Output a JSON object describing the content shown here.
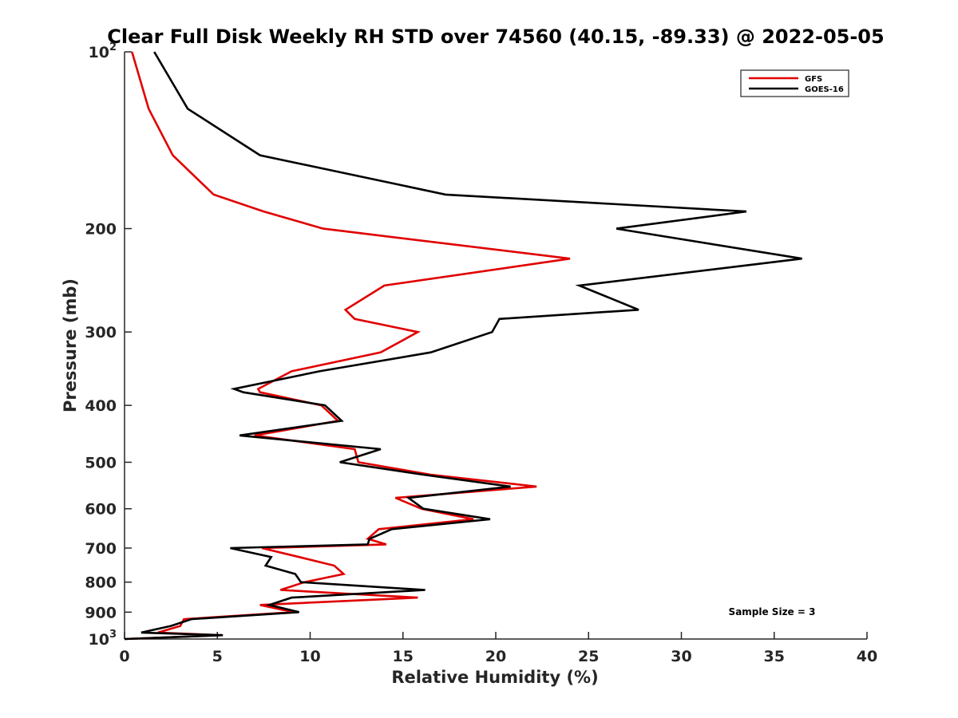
{
  "chart_data": {
    "type": "line",
    "title": "Clear Full Disk Weekly RH STD over 74560 (40.15, -89.33) @ 2022-05-05",
    "xlabel": "Relative Humidity (%)",
    "ylabel": "Pressure (mb)",
    "xlim": [
      0,
      40
    ],
    "ylim": [
      100,
      1000
    ],
    "yscale": "log",
    "y_reversed": true,
    "grid": false,
    "legend_position": "top-right",
    "x_ticks": [
      0,
      5,
      10,
      15,
      20,
      25,
      30,
      35,
      40
    ],
    "y_ticks": [
      {
        "value": 100,
        "label": "10",
        "exp": "2"
      },
      {
        "value": 200,
        "label": "200"
      },
      {
        "value": 300,
        "label": "300"
      },
      {
        "value": 400,
        "label": "400"
      },
      {
        "value": 500,
        "label": "500"
      },
      {
        "value": 600,
        "label": "600"
      },
      {
        "value": 700,
        "label": "700"
      },
      {
        "value": 800,
        "label": "800"
      },
      {
        "value": 900,
        "label": "900"
      },
      {
        "value": 1000,
        "label": "10",
        "exp": "3"
      }
    ],
    "series": [
      {
        "name": "GFS",
        "color": "#e00000",
        "points": [
          [
            0.4,
            100
          ],
          [
            1.3,
            125
          ],
          [
            2.6,
            150
          ],
          [
            4.8,
            175
          ],
          [
            7.5,
            187
          ],
          [
            10.7,
            200
          ],
          [
            24.0,
            225
          ],
          [
            14.0,
            250
          ],
          [
            11.9,
            275
          ],
          [
            12.4,
            285
          ],
          [
            15.8,
            300
          ],
          [
            13.8,
            325
          ],
          [
            9.0,
            350
          ],
          [
            7.2,
            375
          ],
          [
            7.3,
            380
          ],
          [
            10.6,
            400
          ],
          [
            11.5,
            425
          ],
          [
            7.0,
            450
          ],
          [
            12.4,
            475
          ],
          [
            12.6,
            500
          ],
          [
            16.5,
            525
          ],
          [
            22.2,
            550
          ],
          [
            14.6,
            575
          ],
          [
            16.0,
            600
          ],
          [
            18.8,
            625
          ],
          [
            13.7,
            650
          ],
          [
            13.1,
            675
          ],
          [
            14.1,
            690
          ],
          [
            7.4,
            700
          ],
          [
            9.4,
            725
          ],
          [
            11.3,
            750
          ],
          [
            11.8,
            775
          ],
          [
            9.7,
            800
          ],
          [
            8.4,
            825
          ],
          [
            15.8,
            850
          ],
          [
            7.3,
            875
          ],
          [
            9.1,
            900
          ],
          [
            3.2,
            925
          ],
          [
            3.0,
            950
          ],
          [
            1.8,
            975
          ],
          [
            5.2,
            985
          ],
          [
            0.0,
            1000
          ]
        ]
      },
      {
        "name": "GOES-16",
        "color": "#000000",
        "points": [
          [
            1.6,
            100
          ],
          [
            3.4,
            125
          ],
          [
            7.3,
            150
          ],
          [
            17.3,
            175
          ],
          [
            33.5,
            187
          ],
          [
            26.5,
            200
          ],
          [
            36.5,
            225
          ],
          [
            24.5,
            250
          ],
          [
            27.7,
            275
          ],
          [
            20.2,
            285
          ],
          [
            19.8,
            300
          ],
          [
            16.5,
            325
          ],
          [
            10.5,
            350
          ],
          [
            5.9,
            375
          ],
          [
            6.4,
            380
          ],
          [
            10.8,
            400
          ],
          [
            11.7,
            425
          ],
          [
            6.2,
            450
          ],
          [
            13.8,
            475
          ],
          [
            11.6,
            500
          ],
          [
            16.1,
            525
          ],
          [
            20.8,
            550
          ],
          [
            15.3,
            575
          ],
          [
            16.1,
            600
          ],
          [
            19.7,
            625
          ],
          [
            14.4,
            650
          ],
          [
            13.2,
            675
          ],
          [
            13.1,
            690
          ],
          [
            5.7,
            700
          ],
          [
            7.9,
            725
          ],
          [
            7.6,
            750
          ],
          [
            9.2,
            775
          ],
          [
            9.5,
            800
          ],
          [
            16.2,
            825
          ],
          [
            9.0,
            850
          ],
          [
            7.8,
            875
          ],
          [
            9.4,
            900
          ],
          [
            3.6,
            925
          ],
          [
            2.5,
            950
          ],
          [
            0.9,
            975
          ],
          [
            5.3,
            985
          ],
          [
            0.0,
            1000
          ]
        ]
      }
    ],
    "annotation": "Sample Size = 3"
  }
}
